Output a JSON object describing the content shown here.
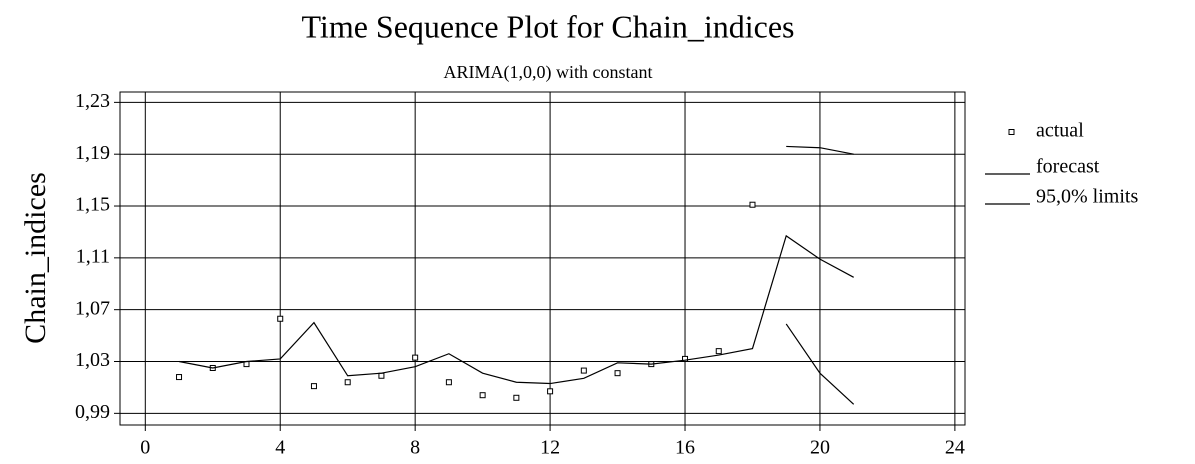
{
  "chart_data": {
    "type": "line",
    "title": "Time Sequence Plot for Chain_indices",
    "subtitle": "ARIMA(1,0,0) with constant",
    "y_label": "Chain_indices",
    "x": [
      1,
      2,
      3,
      4,
      5,
      6,
      7,
      8,
      9,
      10,
      11,
      12,
      13,
      14,
      15,
      16,
      17,
      18,
      19,
      20,
      21
    ],
    "series": [
      {
        "name": "actual",
        "style": "marker",
        "color": "#000000",
        "values": [
          1.018,
          1.025,
          1.028,
          1.063,
          1.011,
          1.014,
          1.019,
          1.033,
          1.014,
          1.004,
          1.002,
          1.007,
          1.023,
          1.021,
          1.028,
          1.032,
          1.038,
          1.151,
          null,
          null,
          null
        ]
      },
      {
        "name": "forecast",
        "style": "line",
        "color": "#000000",
        "values": [
          1.03,
          1.025,
          1.03,
          1.032,
          1.06,
          1.019,
          1.021,
          1.026,
          1.036,
          1.021,
          1.014,
          1.013,
          1.017,
          1.029,
          1.028,
          1.031,
          1.035,
          1.04,
          1.127,
          1.109,
          1.095
        ]
      },
      {
        "name": "95,0% limits",
        "style": "line",
        "color": "#000000",
        "upper": [
          null,
          null,
          null,
          null,
          null,
          null,
          null,
          null,
          null,
          null,
          null,
          null,
          null,
          null,
          null,
          null,
          null,
          null,
          1.196,
          1.195,
          1.19
        ],
        "lower": [
          null,
          null,
          null,
          null,
          null,
          null,
          null,
          null,
          null,
          null,
          null,
          null,
          null,
          null,
          null,
          null,
          null,
          null,
          1.059,
          1.021,
          0.997
        ]
      }
    ],
    "xlim": [
      -0.75,
      24.3
    ],
    "xticks": [
      0,
      4,
      8,
      12,
      16,
      20,
      24
    ],
    "ylim": [
      0.981,
      1.238
    ],
    "yticks": [
      {
        "value": 0.99,
        "label": "0,99"
      },
      {
        "value": 1.03,
        "label": "1,03"
      },
      {
        "value": 1.07,
        "label": "1,07"
      },
      {
        "value": 1.11,
        "label": "1,11"
      },
      {
        "value": 1.15,
        "label": "1,15"
      },
      {
        "value": 1.19,
        "label": "1,19"
      },
      {
        "value": 1.23,
        "label": "1,23"
      }
    ],
    "grid": true
  }
}
